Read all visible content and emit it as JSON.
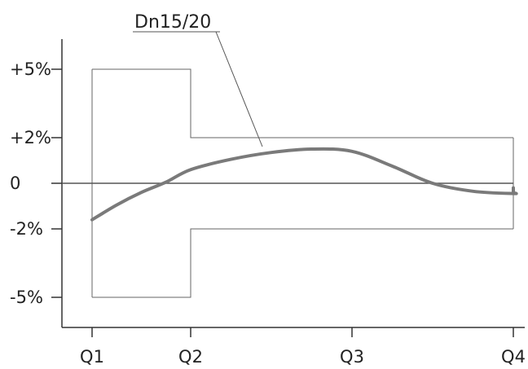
{
  "chart_data": {
    "type": "line",
    "title": "",
    "xlabel": "",
    "ylabel": "",
    "x_ticks": [
      "Q1",
      "Q2",
      "Q3",
      "Q4"
    ],
    "y_ticks": [
      "+5%",
      "+2%",
      "0",
      "-2%",
      "-5%"
    ],
    "y_tick_values": [
      5,
      2,
      0,
      -2,
      -5
    ],
    "ylim": [
      -6.5,
      7.2
    ],
    "grid": false,
    "legend": "none",
    "annotation": "Dn15/20",
    "series": [
      {
        "name": "Dn15/20",
        "color": "#7a7a7a",
        "points": [
          [
            1.0,
            -1.6
          ],
          [
            1.25,
            -0.95
          ],
          [
            1.5,
            -0.4
          ],
          [
            1.75,
            0.05
          ],
          [
            2.0,
            0.6
          ],
          [
            2.25,
            1.05
          ],
          [
            2.5,
            1.35
          ],
          [
            2.75,
            1.5
          ],
          [
            3.0,
            1.4
          ],
          [
            3.25,
            0.75
          ],
          [
            3.5,
            0.0
          ],
          [
            3.75,
            -0.35
          ],
          [
            4.0,
            -0.45
          ],
          [
            4.25,
            -0.4
          ],
          [
            4.5,
            -0.2
          ]
        ]
      }
    ],
    "zero_line": {
      "x": [
        1.0,
        4.5
      ],
      "y": 0
    },
    "tolerance_envelope": {
      "upper": [
        [
          1.0,
          5
        ],
        [
          2.0,
          5
        ],
        [
          2.0,
          2
        ],
        [
          4.5,
          2
        ]
      ],
      "lower": [
        [
          1.0,
          -5
        ],
        [
          2.0,
          -5
        ],
        [
          2.0,
          -2
        ],
        [
          4.5,
          -2
        ]
      ]
    }
  }
}
